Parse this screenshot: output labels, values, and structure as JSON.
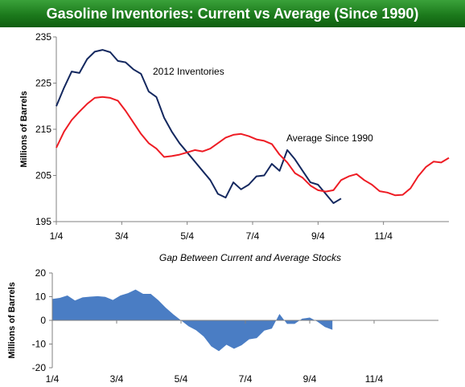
{
  "header": {
    "title": "Gasoline Inventories: Current vs Average (Since 1990)"
  },
  "colors": {
    "current": "#14285f",
    "average": "#ee1c24",
    "gap_fill": "#4a7dc4",
    "banner": "#1f7f1f"
  },
  "chart_data": [
    {
      "type": "line",
      "ylabel": "Millions of Barrels",
      "ylim": [
        195,
        235
      ],
      "yticks": [
        "235",
        "225",
        "215",
        "205",
        "195"
      ],
      "x_tick_labels": [
        "1/4",
        "3/4",
        "5/4",
        "7/4",
        "9/4",
        "11/4"
      ],
      "x_range_weeks": [
        0,
        51
      ],
      "grid": false,
      "legend": "inline-labels",
      "annotations": [
        "2012 Inventories",
        "Average Since 1990"
      ],
      "series": [
        {
          "name": "2012 Inventories",
          "values": [
            220.0,
            224.0,
            227.5,
            227.2,
            230.2,
            231.8,
            232.2,
            231.7,
            229.8,
            229.5,
            228.0,
            227.0,
            223.2,
            222.0,
            217.5,
            214.5,
            212.0,
            210.0,
            208.0,
            206.0,
            204.0,
            201.0,
            200.2,
            203.5,
            202.0,
            203.0,
            204.8,
            205.0,
            207.5,
            206.0,
            210.5,
            208.5,
            206.0,
            203.5,
            203.0,
            201.0,
            199.0,
            200.0
          ]
        },
        {
          "name": "Average Since 1990",
          "values": [
            211.0,
            214.5,
            217.0,
            218.8,
            220.5,
            221.8,
            222.0,
            221.8,
            221.2,
            219.0,
            216.5,
            214.0,
            212.0,
            210.8,
            209.0,
            209.2,
            209.5,
            210.0,
            210.5,
            210.2,
            210.8,
            212.0,
            213.2,
            213.8,
            214.0,
            213.5,
            212.8,
            212.5,
            211.8,
            209.5,
            207.8,
            205.5,
            204.5,
            202.8,
            201.8,
            201.5,
            201.8,
            204.0,
            204.8,
            205.3,
            204.0,
            203.0,
            201.6,
            201.3,
            200.7,
            200.8,
            202.2,
            204.8,
            206.8,
            208.0,
            207.8,
            208.8
          ]
        }
      ]
    },
    {
      "type": "area",
      "title": "Gap Between Current and Average Stocks",
      "ylabel": "Millions of Barrels",
      "ylim": [
        -20,
        20
      ],
      "yticks": [
        "20",
        "10",
        "0",
        "-10",
        "-20"
      ],
      "x_tick_labels": [
        "1/4",
        "3/4",
        "5/4",
        "7/4",
        "9/4",
        "11/4"
      ],
      "x_range_weeks": [
        0,
        51
      ],
      "grid": false,
      "series": [
        {
          "name": "Gap",
          "values": [
            9.0,
            9.5,
            10.5,
            8.4,
            9.7,
            10.0,
            10.2,
            9.9,
            8.6,
            10.5,
            11.5,
            13.0,
            11.2,
            11.2,
            8.5,
            5.3,
            2.5,
            0.0,
            -2.5,
            -4.2,
            -6.8,
            -11.0,
            -13.0,
            -10.3,
            -12.0,
            -10.5,
            -8.0,
            -7.5,
            -4.3,
            -3.5,
            2.7,
            -1.5,
            -1.5,
            0.7,
            1.2,
            -0.5,
            -2.8,
            -4.0
          ]
        }
      ]
    }
  ]
}
